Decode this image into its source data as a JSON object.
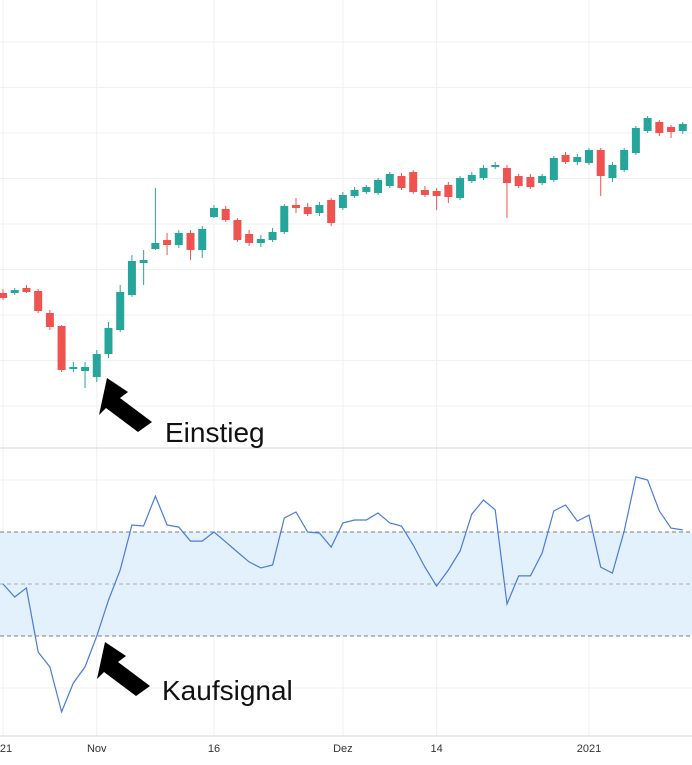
{
  "chart_data": [
    {
      "type": "candlestick",
      "grid": true,
      "up_color": "#26a69a",
      "down_color": "#ef5350",
      "ylim": [
        0,
        90
      ],
      "categories": [
        "21",
        null,
        null,
        null,
        null,
        null,
        null,
        null,
        "Nov",
        null,
        null,
        null,
        null,
        null,
        null,
        null,
        null,
        null,
        "16",
        null,
        null,
        null,
        null,
        null,
        null,
        null,
        null,
        null,
        null,
        "Dez",
        null,
        null,
        null,
        null,
        null,
        null,
        null,
        "14",
        null,
        null,
        null,
        null,
        null,
        null,
        null,
        null,
        null,
        null,
        null,
        null,
        "2021",
        null,
        null,
        null,
        null,
        null,
        null,
        null,
        null
      ],
      "open": [
        31.4,
        31.4,
        32.4,
        31.8,
        27.4,
        24.8,
        16.2,
        15.8,
        14.6,
        19.2,
        24,
        31,
        37.4,
        40.2,
        42,
        41,
        43.4,
        40,
        46.6,
        48.2,
        46,
        43.2,
        41.4,
        42,
        43.6,
        49,
        48.6,
        47.4,
        50,
        48.4,
        50.8,
        51.6,
        51.4,
        52.8,
        54.8,
        55.6,
        52,
        51.8,
        53,
        50.4,
        53.8,
        54.4,
        56.6,
        56.4,
        54.8,
        54.6,
        53.4,
        54,
        59,
        57.6,
        57.4,
        60,
        54.4,
        56,
        59.4,
        63.8,
        65.6,
        64.6,
        63.8
      ],
      "high": [
        32.2,
        32.4,
        33,
        32.2,
        28,
        25,
        17.6,
        17.6,
        20,
        25.6,
        33,
        39,
        40,
        52.4,
        43.4,
        44,
        44,
        44.8,
        49,
        48.8,
        46.4,
        44,
        43,
        44.4,
        49.2,
        50.4,
        49.4,
        49.6,
        50.4,
        51.6,
        52.6,
        53,
        54.4,
        55.6,
        55.4,
        56,
        52.8,
        52.4,
        53.6,
        54.8,
        55.6,
        57,
        57.6,
        57,
        55.2,
        55.2,
        55.2,
        58.8,
        59.6,
        59.2,
        60.4,
        60.4,
        57.6,
        60.4,
        64.8,
        66.8,
        66,
        65,
        65.6
      ],
      "low": [
        30,
        31,
        31.4,
        27.4,
        24,
        15.6,
        15.6,
        12.4,
        13.6,
        18.4,
        23.6,
        30.6,
        33,
        40,
        39,
        40.4,
        38,
        38.4,
        46.4,
        45.6,
        41.6,
        40.8,
        40.6,
        41.6,
        43.2,
        47.4,
        46.8,
        46.8,
        44.8,
        48,
        50.4,
        51.2,
        51,
        52.4,
        52,
        51.2,
        50.6,
        48,
        49.4,
        50,
        53.4,
        54,
        56.2,
        46.4,
        52.4,
        52.2,
        53,
        53.6,
        57.2,
        57,
        57,
        50.8,
        53.6,
        55.6,
        59,
        63.4,
        62.8,
        62.4,
        63.2
      ],
      "close": [
        30.4,
        32,
        31.6,
        27.8,
        24.6,
        16,
        16.6,
        16.6,
        19.2,
        24.4,
        31.6,
        37.8,
        38,
        41.4,
        41,
        43.4,
        40,
        44.2,
        48.4,
        46,
        42,
        41.4,
        42.2,
        43.6,
        48.8,
        48.4,
        47.2,
        49,
        45.4,
        51,
        52,
        52.6,
        54,
        55.2,
        52.4,
        51.6,
        51,
        50.8,
        50.6,
        54.4,
        55,
        56.4,
        57,
        53.4,
        52.8,
        52.6,
        54.8,
        58.4,
        57.6,
        58.6,
        60,
        54.8,
        57,
        60,
        64.4,
        66.4,
        63.4,
        63.6,
        65.2
      ],
      "annotations": [
        "Einstieg"
      ]
    },
    {
      "type": "line",
      "color": "#4a7bd8",
      "ylim": [
        0,
        100
      ],
      "band": [
        30,
        70
      ],
      "band_color": "#e3f1fd",
      "midline": 50,
      "values": [
        50,
        45,
        48.5,
        23.8,
        18.1,
        0.8,
        11.9,
        18.1,
        30,
        43.8,
        55.4,
        72.7,
        72.3,
        83.8,
        72.7,
        71.9,
        66.5,
        66.5,
        70,
        66.2,
        62.3,
        58.5,
        56.2,
        57.3,
        75.4,
        77.7,
        70,
        69.6,
        64.2,
        73.5,
        74.6,
        74.6,
        77.3,
        73.5,
        72.3,
        65,
        56.5,
        49.2,
        55.4,
        62.7,
        76.9,
        82.3,
        78.5,
        42.3,
        53.1,
        53.1,
        61.9,
        78.1,
        80.4,
        74.2,
        76.5,
        56.5,
        54.2,
        70.4,
        91.2,
        90,
        78.1,
        71.5,
        70.8
      ],
      "annotations": [
        "Kaufsignal"
      ]
    }
  ]
}
